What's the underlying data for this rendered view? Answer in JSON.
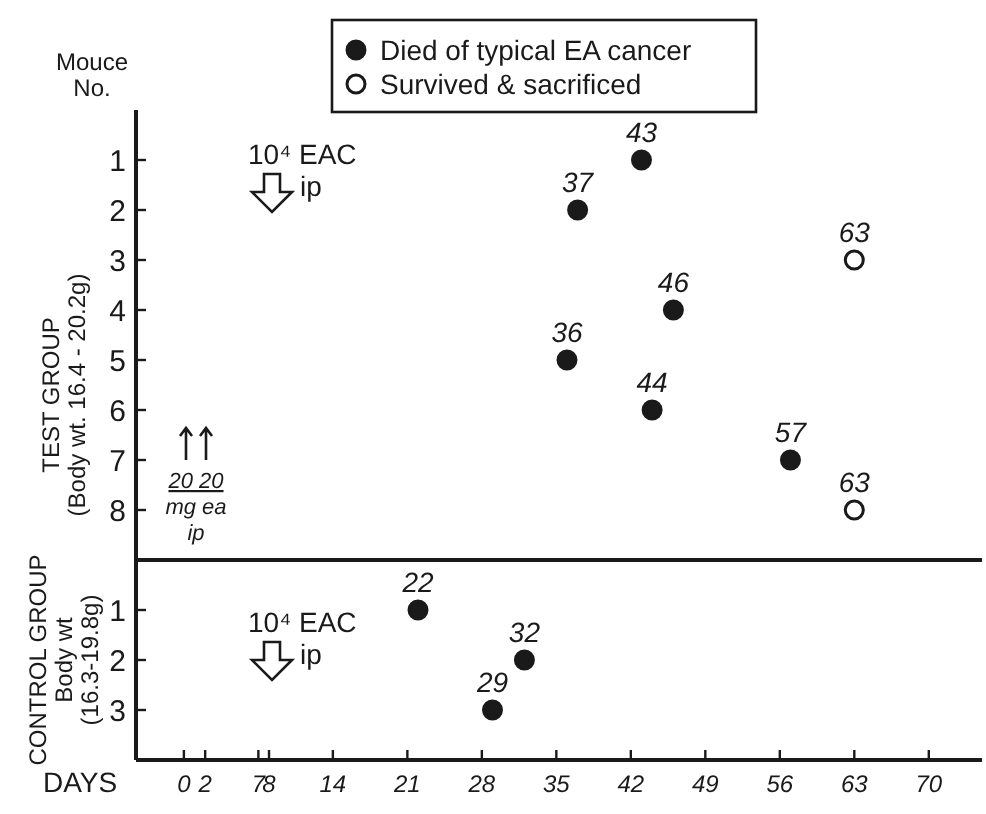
{
  "chart_data": [
    {
      "type": "scatter",
      "ylabel": "TEST GROUP\n(Body wt. 16.4 - 20.2g)",
      "xlim": [
        -4.5,
        75
      ],
      "ylim": [
        9,
        0
      ],
      "yticks": [
        1,
        2,
        3,
        4,
        5,
        6,
        7,
        8
      ],
      "tick_labels": "y",
      "legend": "top",
      "marker": "circle",
      "grid": false,
      "series": [
        {
          "name": "Died of typical EA cancer",
          "color": "#1a1a1a",
          "x": [
            43,
            37,
            46,
            36,
            44,
            57
          ],
          "values": [
            1,
            2,
            4,
            5,
            6,
            7
          ]
        },
        {
          "name": "Survived & sacrificed",
          "color": "#ffffff",
          "x": [
            63,
            63
          ],
          "values": [
            3,
            8
          ]
        }
      ],
      "annotations": [
        "10⁴ EAC\nip",
        "20 20\nmg ea\nip",
        "Mouce No.",
        {
          "text": "43",
          "x": 43,
          "y": 1
        },
        {
          "text": "37",
          "x": 37,
          "y": 2
        },
        {
          "text": "46",
          "x": 46,
          "y": 4
        },
        {
          "text": "36",
          "x": 36,
          "y": 5
        },
        {
          "text": "44",
          "x": 44,
          "y": 6
        },
        {
          "text": "57",
          "x": 57,
          "y": 7
        },
        {
          "text": "63",
          "x": 63,
          "y": 3
        },
        {
          "text": "63",
          "x": 63,
          "y": 8
        }
      ]
    },
    {
      "type": "scatter",
      "ylabel": "CONTROL GROUP\nBody wt\n(16.3-19.8g)",
      "xlabel": "DAYS",
      "xlim": [
        -4.5,
        75
      ],
      "ylim": [
        4,
        0
      ],
      "yticks": [
        1,
        2,
        3
      ],
      "xticks": [
        0,
        2,
        7,
        8,
        14,
        21,
        28,
        35,
        42,
        49,
        56,
        63,
        70
      ],
      "marker": "circle",
      "grid": false,
      "series": [
        {
          "color": "#1a1a1a",
          "x": [
            22,
            32,
            29
          ],
          "values": [
            1,
            2,
            3
          ]
        }
      ],
      "annotations": [
        "10⁴ EAC\nip",
        {
          "text": "22",
          "x": 22,
          "y": 1
        },
        {
          "text": "32",
          "x": 32,
          "y": 2
        },
        {
          "text": "29",
          "x": 29,
          "y": 3
        }
      ]
    }
  ]
}
